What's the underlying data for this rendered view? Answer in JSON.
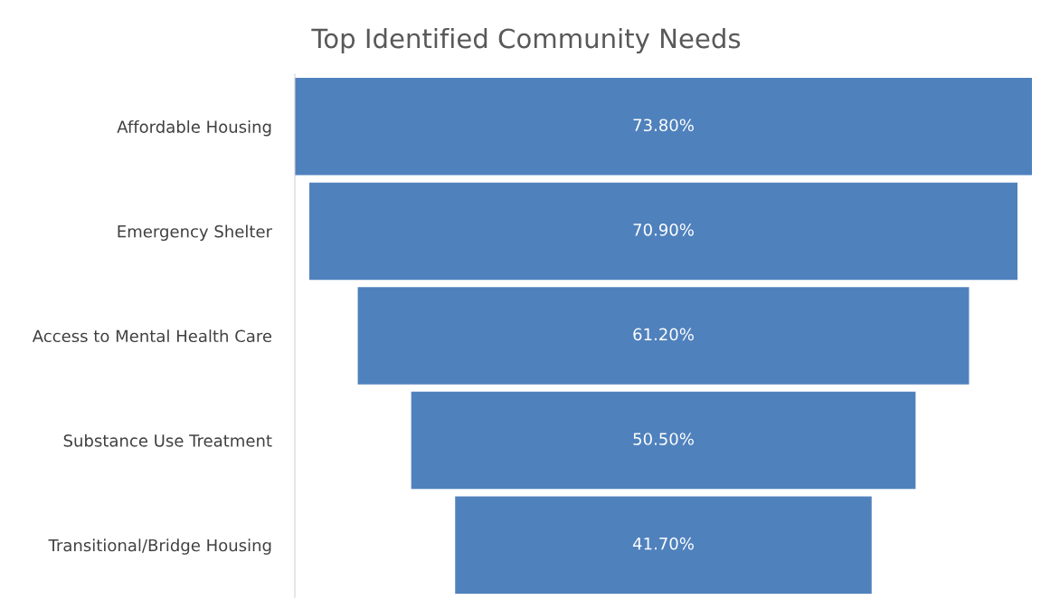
{
  "chart_data": {
    "type": "other",
    "title": "Top Identified Community Needs",
    "categories": [
      "Affordable Housing",
      "Emergency Shelter",
      "Access to Mental Health Care",
      "Substance Use Treatment",
      "Transitional/Bridge Housing"
    ],
    "values": [
      73.8,
      70.9,
      61.2,
      50.5,
      41.7
    ],
    "value_labels": [
      "73.80%",
      "70.90%",
      "61.20%",
      "50.50%",
      "41.70%"
    ],
    "color": "#4f81bd"
  }
}
